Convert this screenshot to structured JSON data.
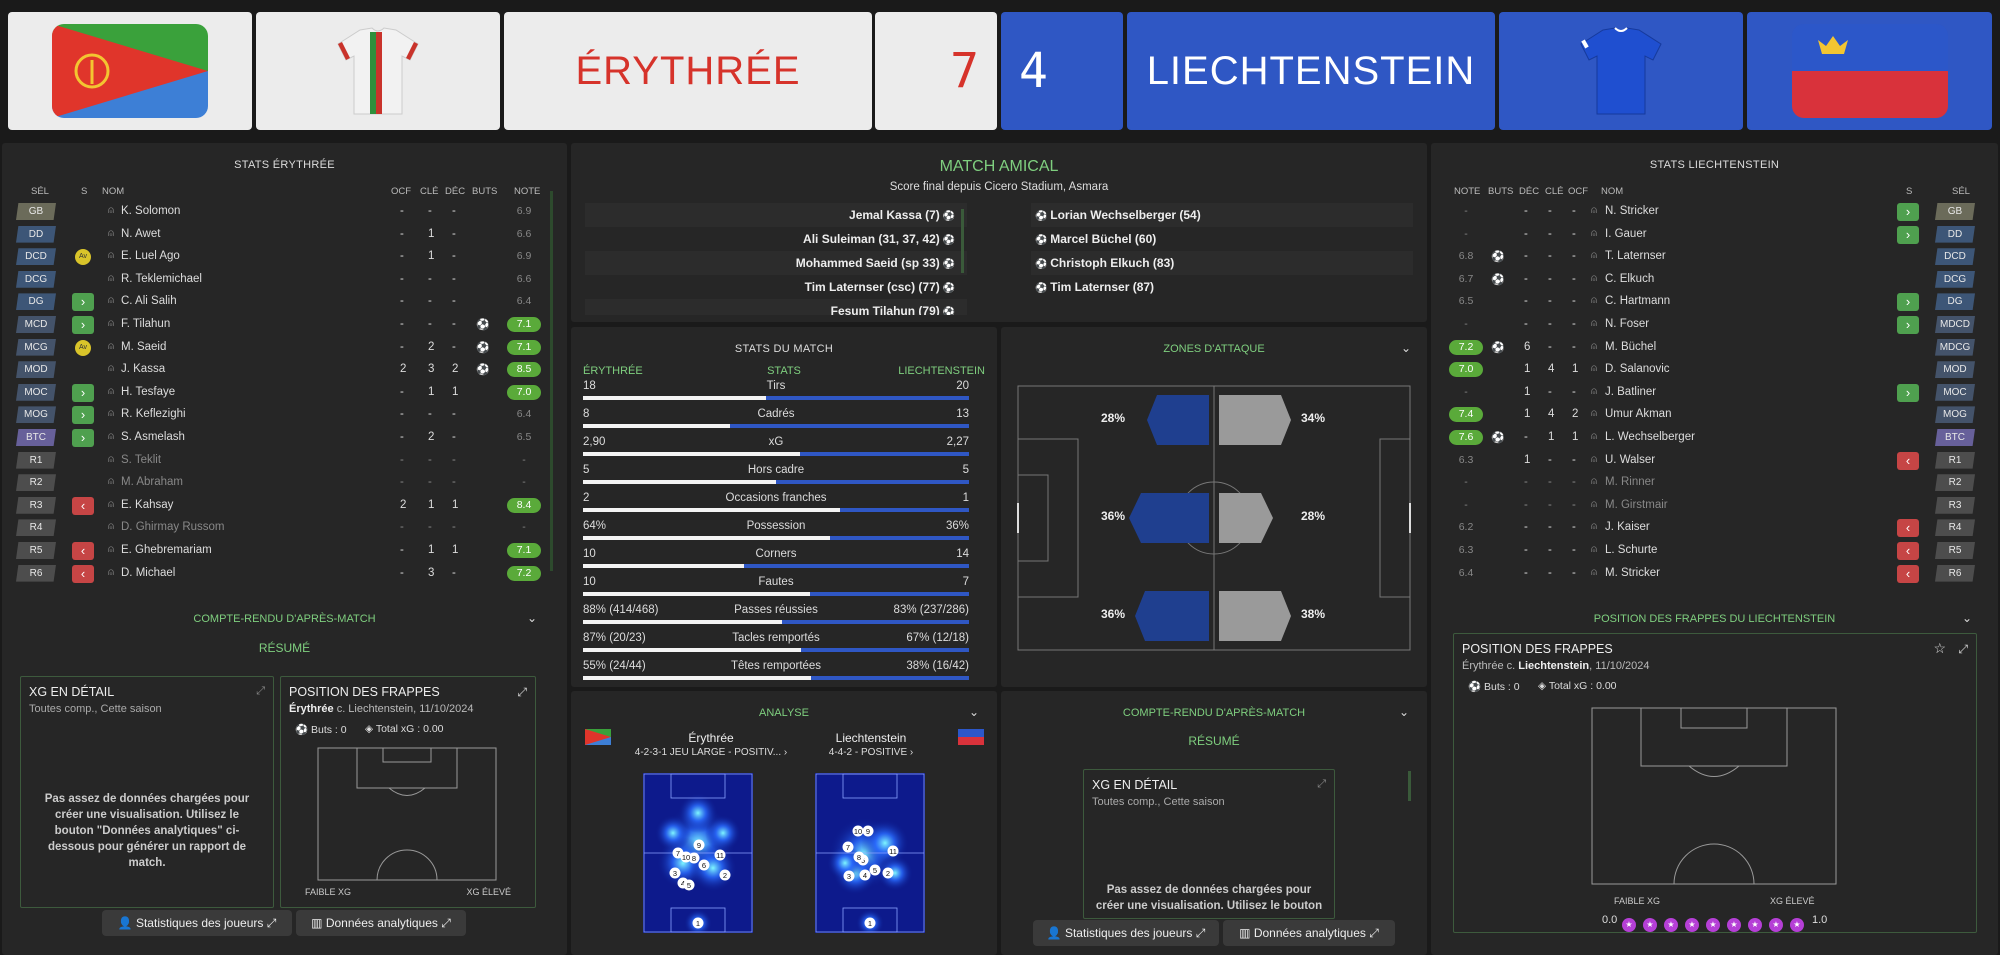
{
  "header": {
    "home_name": "ÉRYTHRÉE",
    "away_name": "LIECHTENSTEIN",
    "home_score": "7",
    "away_score": "4",
    "home_color": "#e6e6e6",
    "away_color": "#2f57c4"
  },
  "home_panel": {
    "title": "STATS ÉRYTHRÉE",
    "columns": {
      "sel": "SÉL",
      "s": "S",
      "name": "NOM",
      "ocf": "OCF",
      "cle": "CLÉ",
      "dec": "DÉC",
      "buts": "BUTS",
      "note": "NOTE"
    },
    "players": [
      {
        "pos": "GB",
        "role": "gk",
        "sub": "",
        "badge": "",
        "name": "K. Solomon",
        "ocf": "-",
        "cle": "-",
        "dec": "-",
        "goal": "",
        "rating": "6.9",
        "hi": false
      },
      {
        "pos": "DD",
        "role": "def",
        "sub": "",
        "badge": "",
        "name": "N. Awet",
        "ocf": "-",
        "cle": "1",
        "dec": "-",
        "goal": "",
        "rating": "6.6",
        "hi": false
      },
      {
        "pos": "DCD",
        "role": "def",
        "sub": "",
        "badge": "Av",
        "name": "E. Luel Ago",
        "ocf": "-",
        "cle": "1",
        "dec": "-",
        "goal": "",
        "rating": "6.9",
        "hi": false
      },
      {
        "pos": "DCG",
        "role": "def",
        "sub": "",
        "badge": "",
        "name": "R. Teklemichael",
        "ocf": "-",
        "cle": "-",
        "dec": "-",
        "goal": "",
        "rating": "6.6",
        "hi": false
      },
      {
        "pos": "DG",
        "role": "def",
        "sub": "in",
        "badge": "",
        "name": "C. Ali Salih",
        "ocf": "-",
        "cle": "-",
        "dec": "-",
        "goal": "",
        "rating": "6.4",
        "hi": false
      },
      {
        "pos": "MCD",
        "role": "mid",
        "sub": "in",
        "badge": "",
        "name": "F. Tilahun",
        "ocf": "-",
        "cle": "-",
        "dec": "-",
        "goal": "ball",
        "rating": "7.1",
        "hi": true
      },
      {
        "pos": "MCG",
        "role": "mid",
        "sub": "",
        "badge": "Av",
        "name": "M. Saeid",
        "ocf": "-",
        "cle": "2",
        "dec": "-",
        "goal": "ball",
        "rating": "7.1",
        "hi": true
      },
      {
        "pos": "MOD",
        "role": "mid",
        "sub": "",
        "badge": "",
        "name": "J. Kassa",
        "ocf": "2",
        "cle": "3",
        "dec": "2",
        "goal": "ball",
        "rating": "8.5",
        "hi": true
      },
      {
        "pos": "MOC",
        "role": "mid",
        "sub": "in",
        "badge": "",
        "name": "H. Tesfaye",
        "ocf": "-",
        "cle": "1",
        "dec": "1",
        "goal": "",
        "rating": "7.0",
        "hi": true
      },
      {
        "pos": "MOG",
        "role": "mid",
        "sub": "in",
        "badge": "",
        "name": "R. Keflezighi",
        "ocf": "-",
        "cle": "-",
        "dec": "-",
        "goal": "",
        "rating": "6.4",
        "hi": false
      },
      {
        "pos": "BTC",
        "role": "att",
        "sub": "in",
        "badge": "",
        "name": "S. Asmelash",
        "ocf": "-",
        "cle": "2",
        "dec": "-",
        "goal": "",
        "rating": "6.5",
        "hi": false
      },
      {
        "pos": "R1",
        "role": "res",
        "sub": "",
        "badge": "",
        "name": "S. Teklit",
        "ocf": "-",
        "cle": "-",
        "dec": "-",
        "goal": "",
        "rating": "-",
        "hi": false,
        "dim": true
      },
      {
        "pos": "R2",
        "role": "res",
        "sub": "",
        "badge": "",
        "name": "M. Abraham",
        "ocf": "-",
        "cle": "-",
        "dec": "-",
        "goal": "",
        "rating": "-",
        "hi": false,
        "dim": true
      },
      {
        "pos": "R3",
        "role": "res",
        "sub": "out",
        "badge": "",
        "name": "E. Kahsay",
        "ocf": "2",
        "cle": "1",
        "dec": "1",
        "goal": "",
        "rating": "8.4",
        "hi": true
      },
      {
        "pos": "R4",
        "role": "res",
        "sub": "",
        "badge": "",
        "name": "D. Ghirmay Russom",
        "ocf": "-",
        "cle": "-",
        "dec": "-",
        "goal": "",
        "rating": "-",
        "hi": false,
        "dim": true
      },
      {
        "pos": "R5",
        "role": "res",
        "sub": "out",
        "badge": "",
        "name": "E. Ghebremariam",
        "ocf": "-",
        "cle": "1",
        "dec": "1",
        "goal": "",
        "rating": "7.1",
        "hi": true
      },
      {
        "pos": "R6",
        "role": "res",
        "sub": "out",
        "badge": "",
        "name": "D. Michael",
        "ocf": "-",
        "cle": "3",
        "dec": "-",
        "goal": "",
        "rating": "7.2",
        "hi": true
      }
    ],
    "report_title": "COMPTE-RENDU D'APRÈS-MATCH",
    "report_sub": "RÉSUMÉ",
    "xg_card": {
      "title": "XG EN DÉTAIL",
      "sub": "Toutes comp., Cette saison",
      "msg": "Pas assez de données chargées pour créer une visualisation. Utilisez le bouton \"Données analytiques\" ci-dessous pour générer un rapport de match."
    },
    "shot_card": {
      "title": "POSITION DES FRAPPES",
      "team": "Érythrée",
      "rest": " c. Liechtenstein, 11/10/2024",
      "goals": "Buts : 0",
      "xg": "Total xG : 0.00",
      "low": "FAIBLE XG",
      "high": "XG ÉLEVÉ"
    },
    "btn_players": "Statistiques des joueurs",
    "btn_analytics": "Données analytiques"
  },
  "center": {
    "title": "MATCH AMICAL",
    "subtitle": "Score final depuis Cicero Stadium, Asmara",
    "home_scorers": [
      "Jemal Kassa (7)",
      "Ali Suleiman (31, 37, 42)",
      "Mohammed Saeid (sp 33)",
      "Tim Laternser (csc) (77)",
      "Fesum Tilahun (79)"
    ],
    "away_scorers": [
      "Lorian Wechselberger (54)",
      "Marcel Büchel (60)",
      "Christoph Elkuch (83)",
      "Tim Laternser (87)"
    ]
  },
  "match_stats": {
    "title": "STATS DU MATCH",
    "home_label": "ÉRYTHRÉE",
    "mid_label": "STATS",
    "away_label": "LIECHTENSTEIN",
    "rows": [
      {
        "label": "Tirs",
        "home": "18",
        "away": "20",
        "share": 0.474
      },
      {
        "label": "Cadrés",
        "home": "8",
        "away": "13",
        "share": 0.381
      },
      {
        "label": "xG",
        "home": "2,90",
        "away": "2,27",
        "share": 0.561
      },
      {
        "label": "Hors cadre",
        "home": "5",
        "away": "5",
        "share": 0.5
      },
      {
        "label": "Occasions franches",
        "home": "2",
        "away": "1",
        "share": 0.667
      },
      {
        "label": "Possession",
        "home": "64%",
        "away": "36%",
        "share": 0.64
      },
      {
        "label": "Corners",
        "home": "10",
        "away": "14",
        "share": 0.417
      },
      {
        "label": "Fautes",
        "home": "10",
        "away": "7",
        "share": 0.588
      },
      {
        "label": "Passes réussies",
        "home": "88% (414/468)",
        "away": "83% (237/286)",
        "share": 0.515
      },
      {
        "label": "Tacles remportés",
        "home": "87% (20/23)",
        "away": "67% (12/18)",
        "share": 0.565
      },
      {
        "label": "Têtes remportées",
        "home": "55% (24/44)",
        "away": "38% (16/42)",
        "share": 0.59
      }
    ]
  },
  "attack_zones": {
    "title": "ZONES D'ATTAQUE",
    "home": [
      "28%",
      "36%",
      "36%"
    ],
    "away": [
      "34%",
      "28%",
      "38%"
    ]
  },
  "analysis": {
    "title": "ANALYSE",
    "home_team": "Érythrée",
    "home_formation": "4-2-3-1 JEU LARGE - POSITIV...",
    "away_team": "Liechtenstein",
    "away_formation": "4-4-2 - POSITIVE",
    "home_numbers": [
      "1",
      "2",
      "3",
      "4",
      "5",
      "6",
      "7",
      "8",
      "9",
      "10",
      "11"
    ],
    "away_numbers": [
      "1",
      "2",
      "3",
      "4",
      "5",
      "6",
      "7",
      "8",
      "9",
      "10",
      "11"
    ]
  },
  "center_report": {
    "title": "COMPTE-RENDU D'APRÈS-MATCH",
    "sub": "RÉSUMÉ",
    "xg_title": "XG EN DÉTAIL",
    "xg_sub": "Toutes comp., Cette saison",
    "xg_msg": "Pas assez de données chargées pour créer une visualisation. Utilisez le bouton",
    "btn_players": "Statistiques des joueurs",
    "btn_analytics": "Données analytiques"
  },
  "away_panel": {
    "title": "STATS LIECHTENSTEIN",
    "columns": {
      "note": "NOTE",
      "buts": "BUTS",
      "dec": "DÉC",
      "cle": "CLÉ",
      "ocf": "OCF",
      "name": "NOM",
      "s": "S",
      "sel": "SÉL"
    },
    "players": [
      {
        "pos": "GB",
        "role": "gk",
        "sub": "in",
        "name": "N. Stricker",
        "ocf": "-",
        "cle": "-",
        "dec": "-",
        "goal": "",
        "rating": "-",
        "hi": false
      },
      {
        "pos": "DD",
        "role": "def",
        "sub": "in",
        "name": "I. Gauer",
        "ocf": "-",
        "cle": "-",
        "dec": "-",
        "goal": "",
        "rating": "-",
        "hi": false
      },
      {
        "pos": "DCD",
        "role": "def",
        "sub": "",
        "name": "T. Laternser",
        "ocf": "-",
        "cle": "-",
        "dec": "-",
        "goal": "ball",
        "rating": "6.8",
        "hi": false
      },
      {
        "pos": "DCG",
        "role": "def",
        "sub": "",
        "name": "C. Elkuch",
        "ocf": "-",
        "cle": "-",
        "dec": "-",
        "goal": "ball",
        "rating": "6.7",
        "hi": false
      },
      {
        "pos": "DG",
        "role": "def",
        "sub": "in",
        "name": "C. Hartmann",
        "ocf": "-",
        "cle": "-",
        "dec": "-",
        "goal": "",
        "rating": "6.5",
        "hi": false
      },
      {
        "pos": "MDCD",
        "role": "mid",
        "sub": "in",
        "name": "N. Foser",
        "ocf": "-",
        "cle": "-",
        "dec": "-",
        "goal": "",
        "rating": "-",
        "hi": false
      },
      {
        "pos": "MDCG",
        "role": "mid",
        "sub": "",
        "name": "M. Büchel",
        "ocf": "-",
        "cle": "-",
        "dec": "6",
        "goal": "ball",
        "rating": "7.2",
        "hi": true
      },
      {
        "pos": "MOD",
        "role": "mid",
        "sub": "",
        "name": "D. Salanovic",
        "ocf": "1",
        "cle": "4",
        "dec": "1",
        "goal": "",
        "rating": "7.0",
        "hi": true
      },
      {
        "pos": "MOC",
        "role": "mid",
        "sub": "in",
        "name": "J. Batliner",
        "ocf": "-",
        "cle": "-",
        "dec": "1",
        "goal": "",
        "rating": "-",
        "hi": false
      },
      {
        "pos": "MOG",
        "role": "mid",
        "sub": "",
        "name": "Umur Akman",
        "ocf": "2",
        "cle": "4",
        "dec": "1",
        "goal": "",
        "rating": "7.4",
        "hi": true
      },
      {
        "pos": "BTC",
        "role": "att",
        "sub": "",
        "name": "L. Wechselberger",
        "ocf": "1",
        "cle": "1",
        "dec": "-",
        "goal": "ball",
        "rating": "7.6",
        "hi": true
      },
      {
        "pos": "R1",
        "role": "res",
        "sub": "out",
        "name": "U. Walser",
        "ocf": "-",
        "cle": "-",
        "dec": "1",
        "goal": "",
        "rating": "6.3",
        "hi": false
      },
      {
        "pos": "R2",
        "role": "res",
        "sub": "",
        "name": "M. Rinner",
        "ocf": "-",
        "cle": "-",
        "dec": "-",
        "goal": "",
        "rating": "-",
        "hi": false,
        "dim": true
      },
      {
        "pos": "R3",
        "role": "res",
        "sub": "",
        "name": "M. Girstmair",
        "ocf": "-",
        "cle": "-",
        "dec": "-",
        "goal": "",
        "rating": "-",
        "hi": false,
        "dim": true
      },
      {
        "pos": "R4",
        "role": "res",
        "sub": "out",
        "name": "J. Kaiser",
        "ocf": "-",
        "cle": "-",
        "dec": "-",
        "goal": "",
        "rating": "6.2",
        "hi": false
      },
      {
        "pos": "R5",
        "role": "res",
        "sub": "out",
        "name": "L. Schurte",
        "ocf": "-",
        "cle": "-",
        "dec": "-",
        "goal": "",
        "rating": "6.3",
        "hi": false
      },
      {
        "pos": "R6",
        "role": "res",
        "sub": "out",
        "name": "M. Stricker",
        "ocf": "-",
        "cle": "-",
        "dec": "-",
        "goal": "",
        "rating": "6.4",
        "hi": false
      }
    ],
    "shots_title": "POSITION DES FRAPPES DU LIECHTENSTEIN",
    "shot_card": {
      "title": "POSITION DES FRAPPES",
      "pre": "Érythrée c. ",
      "team": "Liechtenstein",
      "rest": ", 11/10/2024",
      "goals": "Buts : 0",
      "xg": "Total xG : 0.00",
      "low": "FAIBLE XG",
      "high": "XG ÉLEVÉ",
      "scale_min": "0.0",
      "scale_max": "1.0"
    }
  }
}
